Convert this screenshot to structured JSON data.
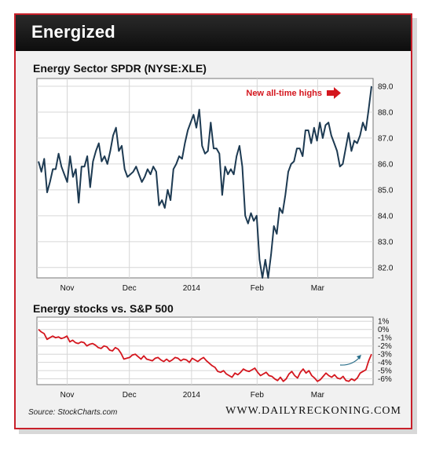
{
  "header": {
    "title": "Energized"
  },
  "footer": {
    "source": "Source: StockCharts.com",
    "brand": "WWW.DAILYRECKONING.COM"
  },
  "colors": {
    "frame": "#c8202a",
    "line_main": "#1d3a52",
    "line_sub": "#d4161e",
    "arrow_sub": "#2a6f8a"
  },
  "chart_data": [
    {
      "type": "line",
      "title": "Energy Sector SPDR (NYSE:XLE)",
      "x_ticks": [
        "Nov",
        "Dec",
        "2014",
        "Feb",
        "Mar"
      ],
      "y_ticks": [
        "82.0",
        "83.0",
        "84.0",
        "85.0",
        "86.0",
        "87.0",
        "88.0",
        "89.0"
      ],
      "ylim": [
        81.6,
        89.3
      ],
      "grid": true,
      "annotation": "New all-time highs",
      "series": [
        {
          "values": [
            86.1,
            85.7,
            86.2,
            84.9,
            85.3,
            85.8,
            85.8,
            86.4,
            85.9,
            85.6,
            85.3,
            86.3,
            85.5,
            85.8,
            84.5,
            85.9,
            85.9,
            86.3,
            85.1,
            86.1,
            86.5,
            86.8,
            86.1,
            86.3,
            86.0,
            86.5,
            87.1,
            87.4,
            86.5,
            86.7,
            85.8,
            85.5,
            85.6,
            85.7,
            85.9,
            85.6,
            85.3,
            85.5,
            85.8,
            85.6,
            85.9,
            85.7,
            84.4,
            84.6,
            84.3,
            85.0,
            84.6,
            85.8,
            86.0,
            86.3,
            86.2,
            86.8,
            87.3,
            87.6,
            87.9,
            87.4,
            88.1,
            86.7,
            86.4,
            86.5,
            87.6,
            86.6,
            86.6,
            86.4,
            84.8,
            85.9,
            85.6,
            85.8,
            85.6,
            86.3,
            86.7,
            85.9,
            84.0,
            83.7,
            84.1,
            83.8,
            84.0,
            82.3,
            81.6,
            82.3,
            81.6,
            82.5,
            83.6,
            83.3,
            84.3,
            84.1,
            84.8,
            85.7,
            86.0,
            86.1,
            86.6,
            86.6,
            86.3,
            87.3,
            87.3,
            86.8,
            87.4,
            86.9,
            87.6,
            87.0,
            87.5,
            87.6,
            87.1,
            86.8,
            86.5,
            85.9,
            86.0,
            86.6,
            87.2,
            86.5,
            86.9,
            86.8,
            87.1,
            87.6,
            87.3,
            88.1,
            89.0
          ]
        }
      ]
    },
    {
      "type": "line",
      "title": "Energy stocks vs. S&P 500",
      "x_ticks": [
        "Nov",
        "Dec",
        "2014",
        "Feb",
        "Mar"
      ],
      "y_ticks": [
        "1%",
        "0%",
        "-1%",
        "-2%",
        "-3%",
        "-4%",
        "-5%",
        "-6%"
      ],
      "ylim": [
        -6.7,
        1.5
      ],
      "grid": true,
      "series": [
        {
          "values": [
            0,
            -0.3,
            -0.5,
            -1.2,
            -1.0,
            -0.8,
            -1.0,
            -0.9,
            -1.1,
            -1.0,
            -0.8,
            -1.5,
            -1.3,
            -1.6,
            -1.7,
            -1.5,
            -1.6,
            -2.0,
            -1.8,
            -1.7,
            -1.9,
            -2.2,
            -2.3,
            -2.0,
            -2.1,
            -2.5,
            -2.6,
            -2.2,
            -2.4,
            -2.9,
            -3.6,
            -3.5,
            -3.4,
            -3.1,
            -3.0,
            -3.3,
            -3.6,
            -3.2,
            -3.6,
            -3.7,
            -3.8,
            -3.5,
            -3.4,
            -3.7,
            -3.9,
            -3.6,
            -3.9,
            -3.7,
            -3.4,
            -3.5,
            -3.8,
            -3.6,
            -3.7,
            -4.0,
            -3.5,
            -3.7,
            -3.9,
            -3.6,
            -3.4,
            -3.8,
            -4.1,
            -4.4,
            -4.6,
            -5.1,
            -5.2,
            -5.0,
            -5.4,
            -5.6,
            -5.8,
            -5.3,
            -5.5,
            -5.2,
            -4.8,
            -5.0,
            -5.1,
            -4.9,
            -4.7,
            -5.2,
            -5.6,
            -5.4,
            -5.2,
            -5.6,
            -5.7,
            -6.0,
            -6.2,
            -5.8,
            -6.3,
            -6.0,
            -5.4,
            -5.1,
            -5.6,
            -5.9,
            -5.2,
            -4.8,
            -5.3,
            -5.0,
            -5.6,
            -5.9,
            -6.3,
            -6.1,
            -5.7,
            -5.3,
            -5.6,
            -5.8,
            -5.5,
            -5.9,
            -6.0,
            -5.7,
            -6.2,
            -6.3,
            -6.0,
            -6.2,
            -5.9,
            -5.3,
            -5.1,
            -4.9,
            -3.8,
            -3.0
          ]
        }
      ]
    }
  ]
}
